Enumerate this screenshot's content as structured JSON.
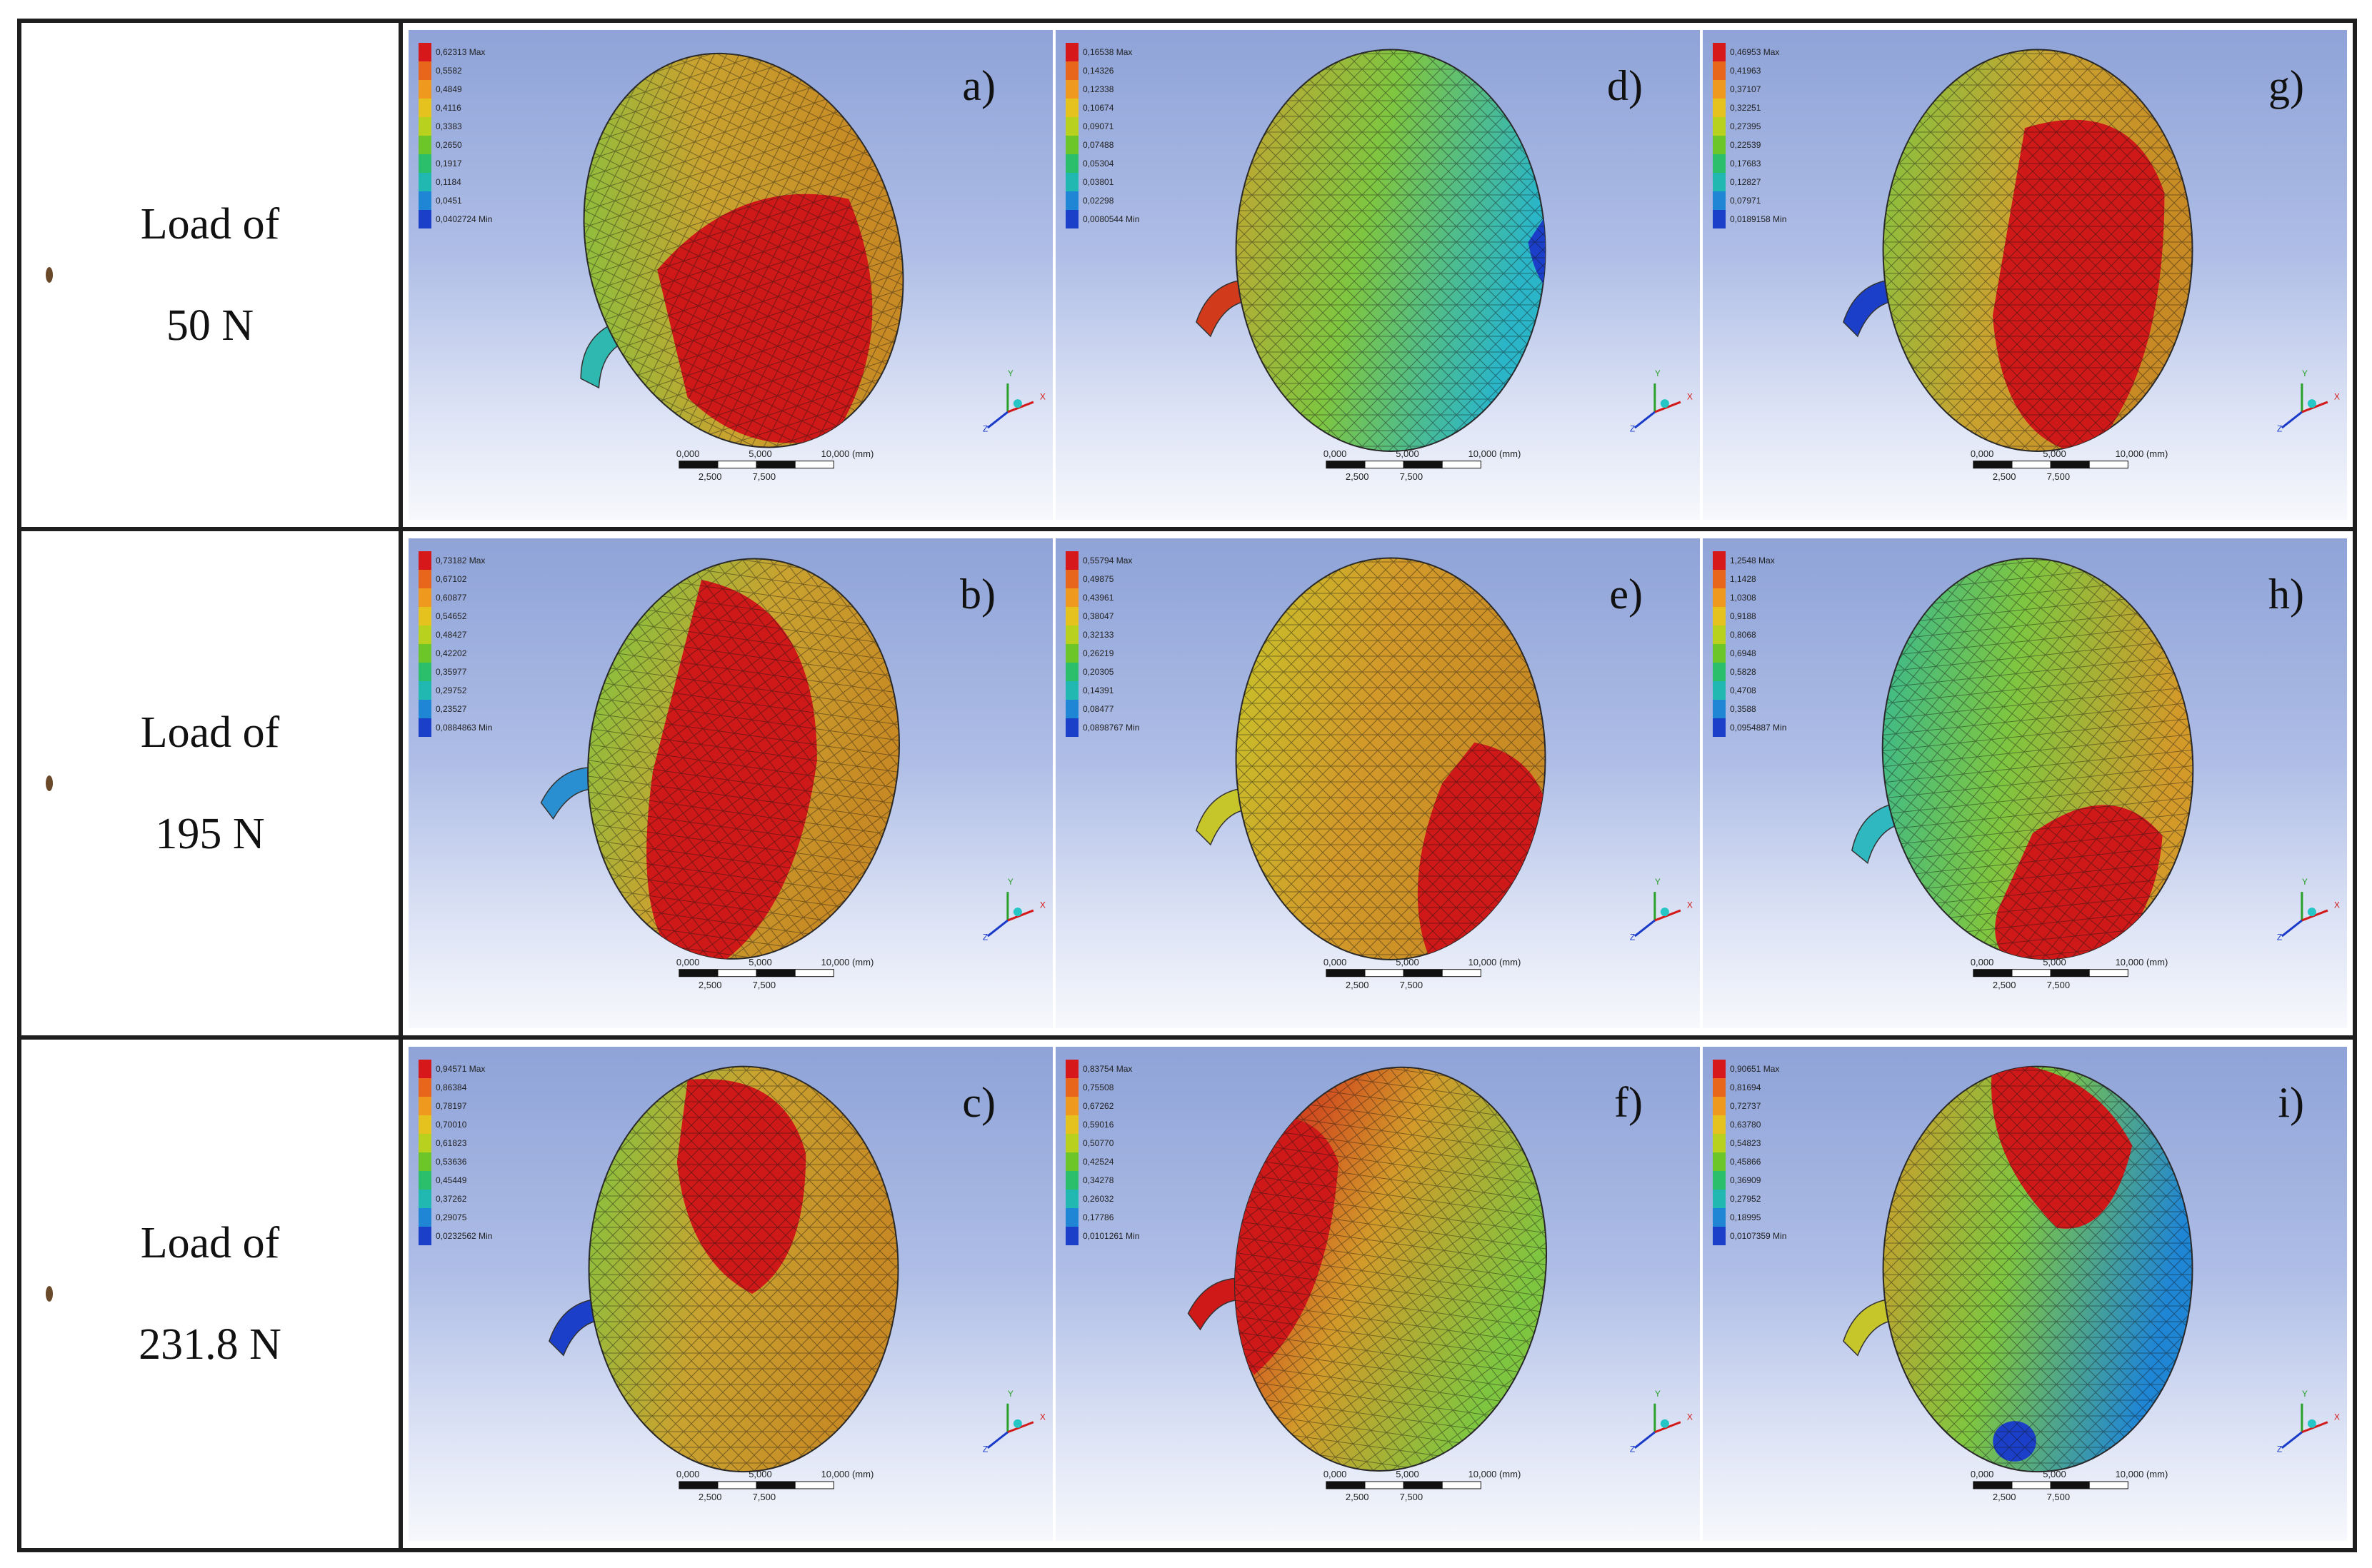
{
  "rows": [
    {
      "label_line1": "Load of",
      "label_line2": "50 N",
      "panels": [
        {
          "letter": "a)",
          "legend_max": "0,62313 Max",
          "legend_min": "0,0402724 Min",
          "legend_mid": [
            "0,5582",
            "0,4849",
            "0,4116",
            "0,3383",
            "0,2650",
            "0,1917",
            "0,1184",
            "0,0451"
          ]
        },
        {
          "letter": "d)",
          "legend_max": "0,16538 Max",
          "legend_min": "0,0080544 Min",
          "legend_mid": [
            "0,14326",
            "0,12338",
            "0,10674",
            "0,09071",
            "0,07488",
            "0,05304",
            "0,03801",
            "0,02298"
          ]
        },
        {
          "letter": "g)",
          "legend_max": "0,46953 Max",
          "legend_min": "0,0189158 Min",
          "legend_mid": [
            "0,41963",
            "0,37107",
            "0,32251",
            "0,27395",
            "0,22539",
            "0,17683",
            "0,12827",
            "0,07971"
          ]
        }
      ]
    },
    {
      "label_line1": "Load of",
      "label_line2": "195 N",
      "panels": [
        {
          "letter": "b)",
          "legend_max": "0,73182 Max",
          "legend_min": "0,0884863 Min",
          "legend_mid": [
            "0,67102",
            "0,60877",
            "0,54652",
            "0,48427",
            "0,42202",
            "0,35977",
            "0,29752",
            "0,23527"
          ]
        },
        {
          "letter": "e)",
          "legend_max": "0,55794 Max",
          "legend_min": "0,0898767 Min",
          "legend_mid": [
            "0,49875",
            "0,43961",
            "0,38047",
            "0,32133",
            "0,26219",
            "0,20305",
            "0,14391",
            "0,08477"
          ]
        },
        {
          "letter": "h)",
          "legend_max": "1,2548 Max",
          "legend_min": "0,0954887 Min",
          "legend_mid": [
            "1,1428",
            "1,0308",
            "0,9188",
            "0,8068",
            "0,6948",
            "0,5828",
            "0,4708",
            "0,3588"
          ]
        }
      ]
    },
    {
      "label_line1": "Load of",
      "label_line2": "231.8 N",
      "panels": [
        {
          "letter": "c)",
          "legend_max": "0,94571 Max",
          "legend_min": "0,0232562 Min",
          "legend_mid": [
            "0,86384",
            "0,78197",
            "0,70010",
            "0,61823",
            "0,53636",
            "0,45449",
            "0,37262",
            "0,29075"
          ]
        },
        {
          "letter": "f)",
          "legend_max": "0,83754 Max",
          "legend_min": "0,0101261 Min",
          "legend_mid": [
            "0,75508",
            "0,67262",
            "0,59016",
            "0,50770",
            "0,42524",
            "0,34278",
            "0,26032",
            "0,17786"
          ]
        },
        {
          "letter": "i)",
          "legend_max": "0,90651 Max",
          "legend_min": "0,0107359 Min",
          "legend_mid": [
            "0,81694",
            "0,72737",
            "0,63780",
            "0,54823",
            "0,45866",
            "0,36909",
            "0,27952",
            "0,18995"
          ]
        }
      ]
    }
  ],
  "scale_bar": {
    "top_labels": [
      "0,000",
      "5,000",
      "10,000 (mm)"
    ],
    "bottom_labels": [
      "2,500",
      "7,500"
    ]
  },
  "axis_letters": [
    "Y",
    "X",
    "Z"
  ],
  "legend_colors": [
    "#d7181b",
    "#e8651c",
    "#ef9a1f",
    "#e6c21f",
    "#b8d11e",
    "#6cc629",
    "#2bbf6b",
    "#22b8b2",
    "#1f86d6",
    "#1b3fc9"
  ],
  "panel_views": [
    {
      "body_color": "#c99c2a",
      "hot": "#c81818",
      "view": "a"
    },
    {
      "body_color": "#6cbf3a",
      "hot": "#1432c8",
      "view": "d"
    },
    {
      "body_color": "#c99c2a",
      "hot": "#c81818",
      "view": "g"
    }
  ]
}
